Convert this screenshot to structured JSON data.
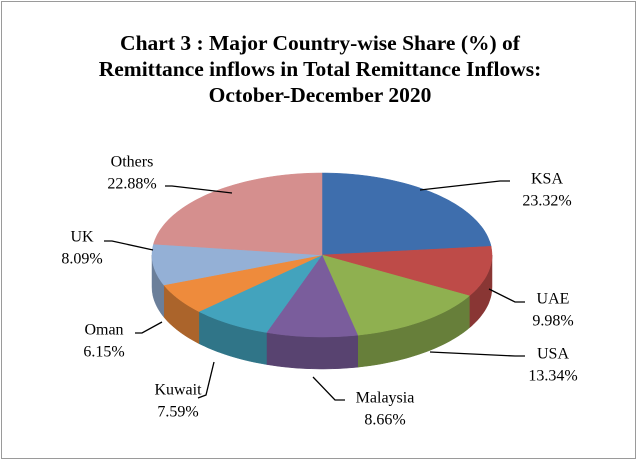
{
  "chart_data": {
    "type": "pie",
    "title": "Chart 3 : Major Country-wise Share (%) of Remittance inflows in Total Remittance Inflows: October-December 2020",
    "categories": [
      "KSA",
      "UAE",
      "USA",
      "Malaysia",
      "Kuwait",
      "Oman",
      "UK",
      "Others"
    ],
    "values": [
      23.32,
      9.98,
      13.34,
      8.66,
      7.59,
      6.15,
      8.09,
      22.88
    ],
    "value_labels": [
      "23.32%",
      "9.98%",
      "13.34%",
      "8.66%",
      "7.59%",
      "6.15%",
      "8.09%",
      "22.88%"
    ],
    "colors": [
      "#3e6ead",
      "#be4b48",
      "#8fb050",
      "#7a5d9c",
      "#43a3bd",
      "#ee8b3c",
      "#94b0d6",
      "#d58f8e"
    ]
  }
}
